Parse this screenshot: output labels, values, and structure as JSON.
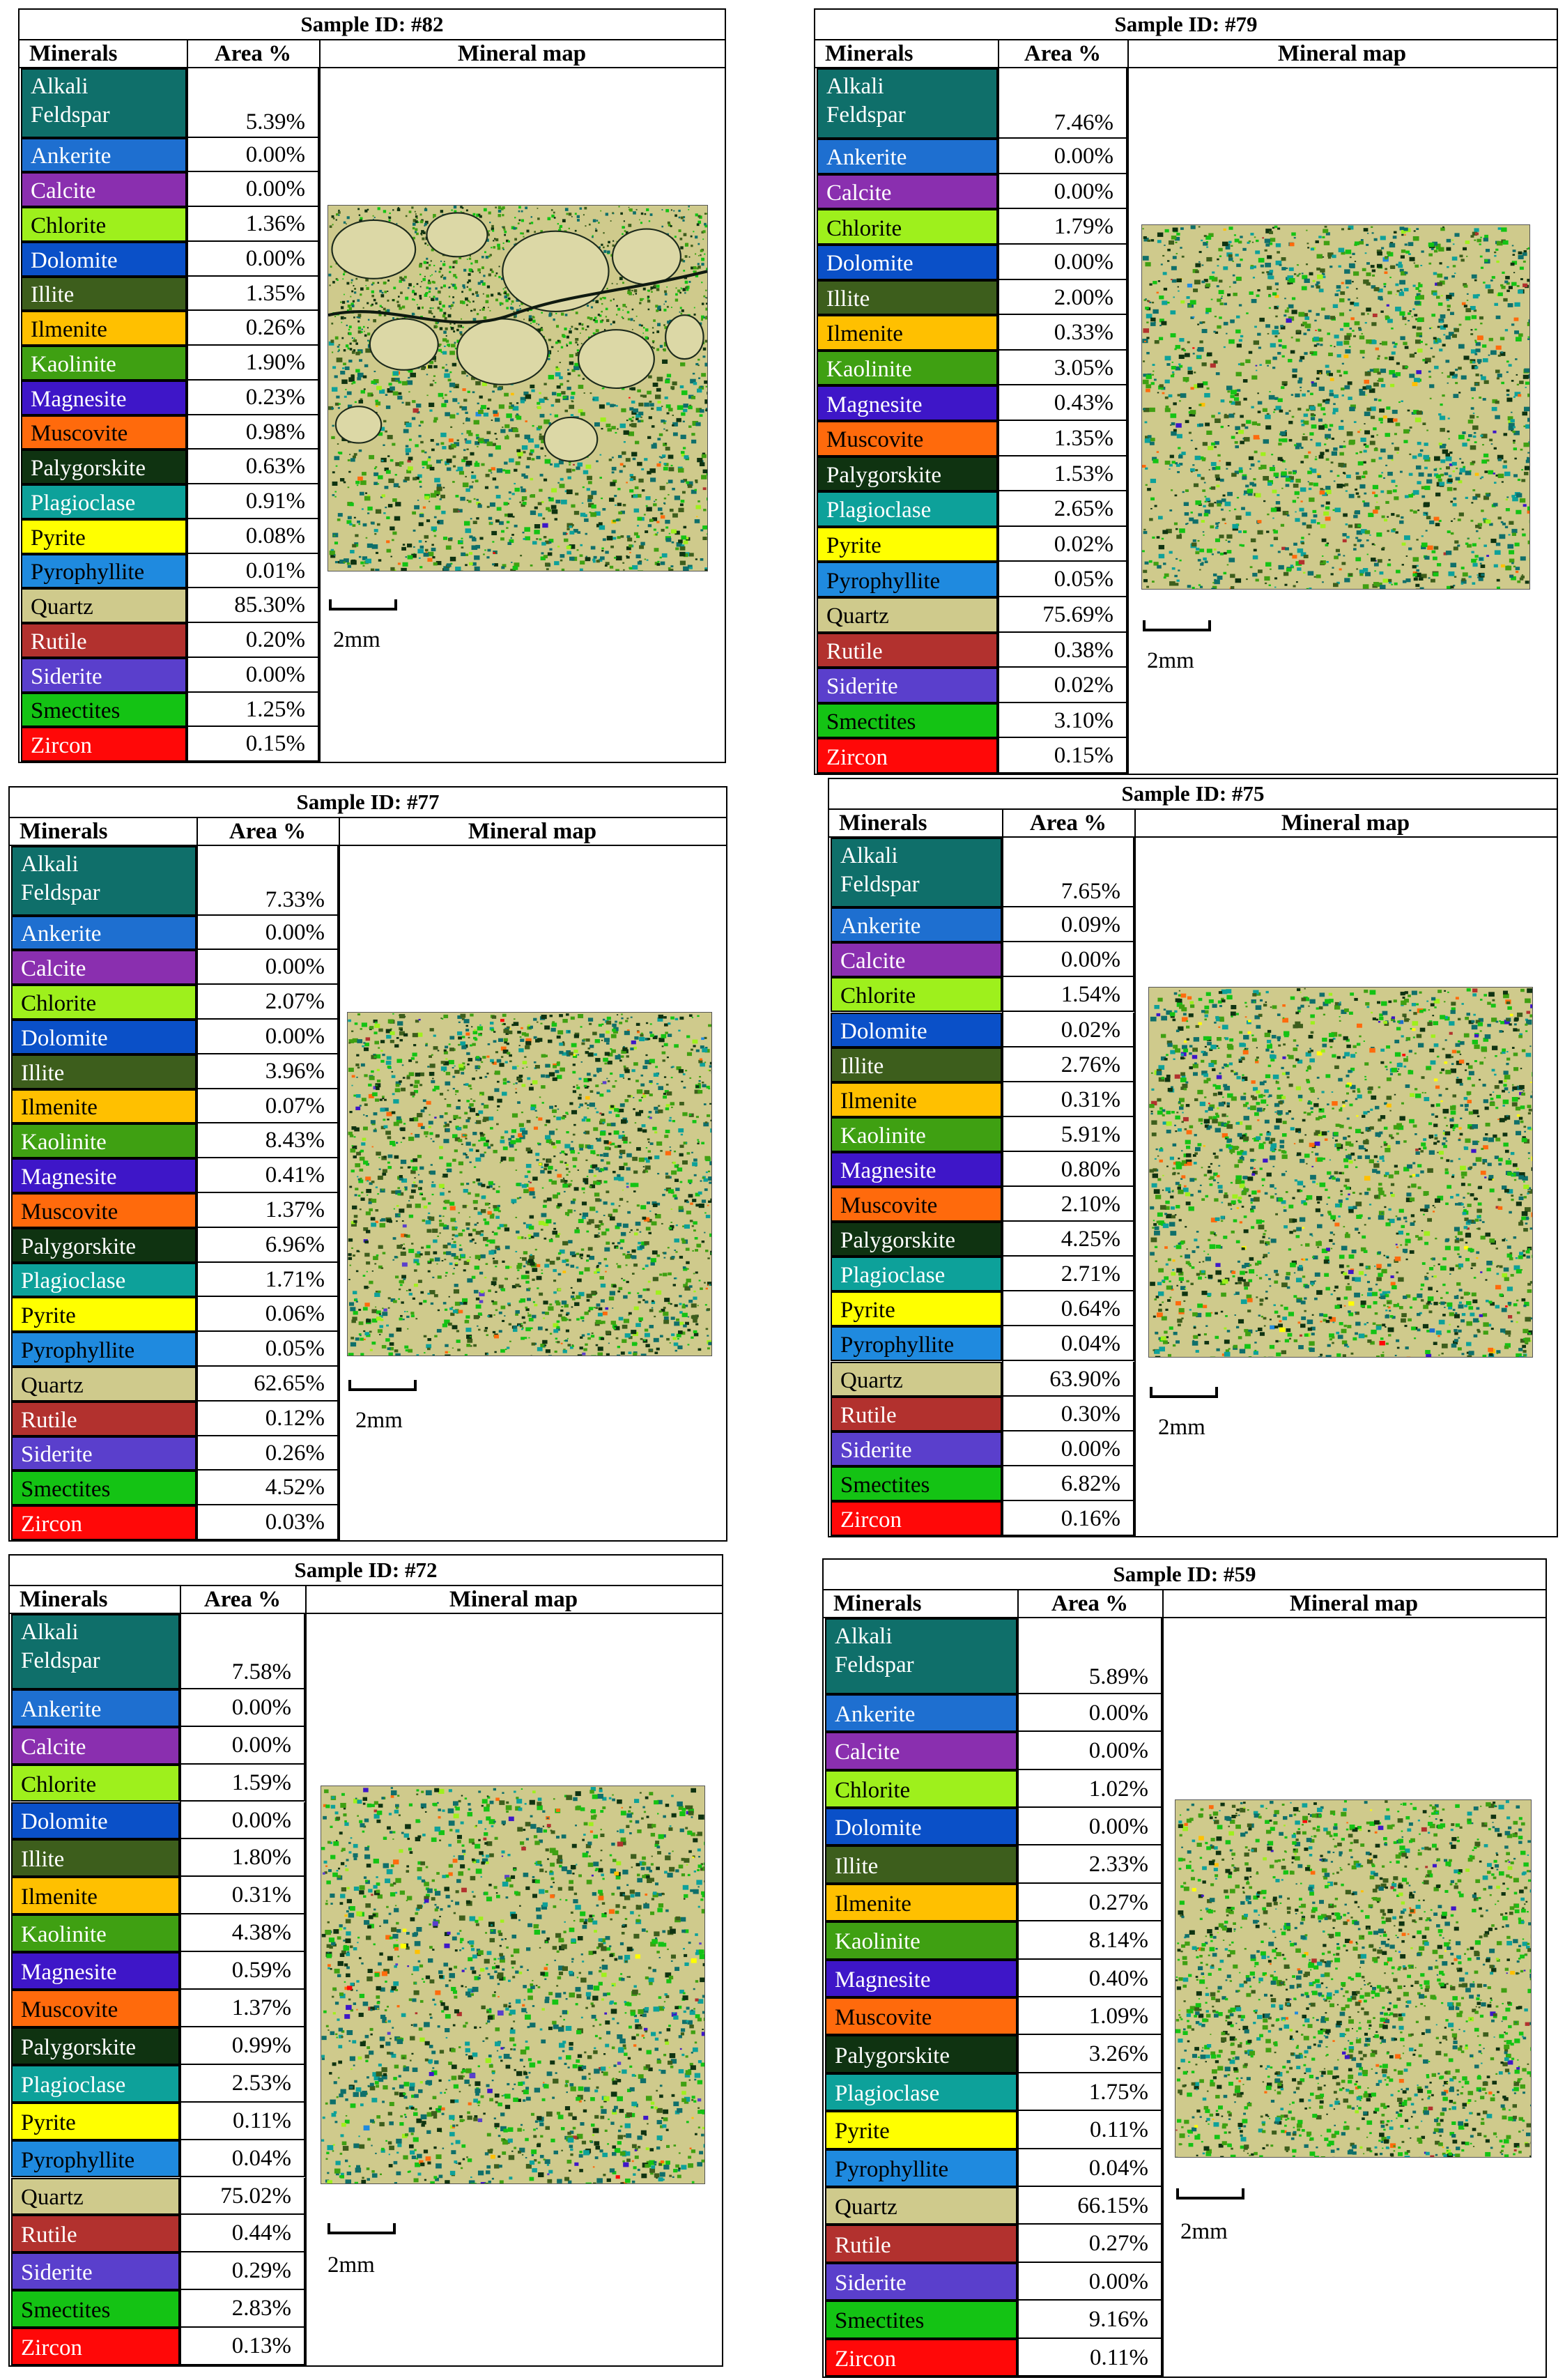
{
  "header": {
    "minerals": "Minerals",
    "area": "Area %",
    "map": "Mineral map"
  },
  "scale_label": "2mm",
  "minerals": [
    {
      "name": "Alkali Feldspar",
      "line1": "Alkali",
      "line2": "Feldspar",
      "color": "#0f6f6a",
      "dark": false
    },
    {
      "name": "Ankerite",
      "color": "#1e6fd0",
      "dark": false
    },
    {
      "name": "Calcite",
      "color": "#8a2faf",
      "dark": false
    },
    {
      "name": "Chlorite",
      "color": "#9ef01c",
      "dark": true
    },
    {
      "name": "Dolomite",
      "color": "#0a50c8",
      "dark": false
    },
    {
      "name": "Illite",
      "color": "#3d5e1c",
      "dark": false
    },
    {
      "name": "Ilmenite",
      "color": "#ffc000",
      "dark": true
    },
    {
      "name": "Kaolinite",
      "color": "#3fa012",
      "dark": false
    },
    {
      "name": "Magnesite",
      "color": "#3e16c8",
      "dark": false
    },
    {
      "name": "Muscovite",
      "color": "#ff6a0c",
      "dark": true
    },
    {
      "name": "Palygorskite",
      "color": "#0f3311",
      "dark": false
    },
    {
      "name": "Plagioclase",
      "color": "#0da19a",
      "dark": false
    },
    {
      "name": "Pyrite",
      "color": "#ffff00",
      "dark": true
    },
    {
      "name": "Pyrophyllite",
      "color": "#1f8adf",
      "dark": true
    },
    {
      "name": "Quartz",
      "color": "#cfca8c",
      "dark": true
    },
    {
      "name": "Rutile",
      "color": "#b2312e",
      "dark": false
    },
    {
      "name": "Siderite",
      "color": "#5a3fcc",
      "dark": false
    },
    {
      "name": "Smectites",
      "color": "#14c314",
      "dark": true
    },
    {
      "name": "Zircon",
      "color": "#ff0808",
      "dark": false
    }
  ],
  "chart_data": [
    {
      "type": "table",
      "title": "Sample ID: #82",
      "columns": [
        "Minerals",
        "Area %",
        "Mineral map"
      ],
      "values": [
        "5.39%",
        "0.00%",
        "0.00%",
        "1.36%",
        "0.00%",
        "1.35%",
        "0.26%",
        "1.90%",
        "0.23%",
        "0.98%",
        "0.63%",
        "0.91%",
        "0.08%",
        "0.01%",
        "85.30%",
        "0.20%",
        "0.00%",
        "1.25%",
        "0.15%"
      ]
    },
    {
      "type": "table",
      "title": "Sample ID: #79",
      "columns": [
        "Minerals",
        "Area %",
        "Mineral map"
      ],
      "values": [
        "7.46%",
        "0.00%",
        "0.00%",
        "1.79%",
        "0.00%",
        "2.00%",
        "0.33%",
        "3.05%",
        "0.43%",
        "1.35%",
        "1.53%",
        "2.65%",
        "0.02%",
        "0.05%",
        "75.69%",
        "0.38%",
        "0.02%",
        "3.10%",
        "0.15%"
      ]
    },
    {
      "type": "table",
      "title": "Sample ID: #77",
      "columns": [
        "Minerals",
        "Area %",
        "Mineral map"
      ],
      "values": [
        "7.33%",
        "0.00%",
        "0.00%",
        "2.07%",
        "0.00%",
        "3.96%",
        "0.07%",
        "8.43%",
        "0.41%",
        "1.37%",
        "6.96%",
        "1.71%",
        "0.06%",
        "0.05%",
        "62.65%",
        "0.12%",
        "0.26%",
        "4.52%",
        "0.03%"
      ]
    },
    {
      "type": "table",
      "title": "Sample ID: #75",
      "columns": [
        "Minerals",
        "Area %",
        "Mineral map"
      ],
      "values": [
        "7.65%",
        "0.09%",
        "0.00%",
        "1.54%",
        "0.02%",
        "2.76%",
        "0.31%",
        "5.91%",
        "0.80%",
        "2.10%",
        "4.25%",
        "2.71%",
        "0.64%",
        "0.04%",
        "63.90%",
        "0.30%",
        "0.00%",
        "6.82%",
        "0.16%"
      ]
    },
    {
      "type": "table",
      "title": "Sample ID: #72",
      "columns": [
        "Minerals",
        "Area %",
        "Mineral map"
      ],
      "values": [
        "7.58%",
        "0.00%",
        "0.00%",
        "1.59%",
        "0.00%",
        "1.80%",
        "0.31%",
        "4.38%",
        "0.59%",
        "1.37%",
        "0.99%",
        "2.53%",
        "0.11%",
        "0.04%",
        "75.02%",
        "0.44%",
        "0.29%",
        "2.83%",
        "0.13%"
      ]
    },
    {
      "type": "table",
      "title": "Sample ID: #59",
      "columns": [
        "Minerals",
        "Area %",
        "Mineral map"
      ],
      "values": [
        "5.89%",
        "0.00%",
        "0.00%",
        "1.02%",
        "0.00%",
        "2.33%",
        "0.27%",
        "8.14%",
        "0.40%",
        "1.09%",
        "3.26%",
        "1.75%",
        "0.11%",
        "0.04%",
        "66.15%",
        "0.27%",
        "0.00%",
        "9.16%",
        "0.11%"
      ]
    }
  ]
}
